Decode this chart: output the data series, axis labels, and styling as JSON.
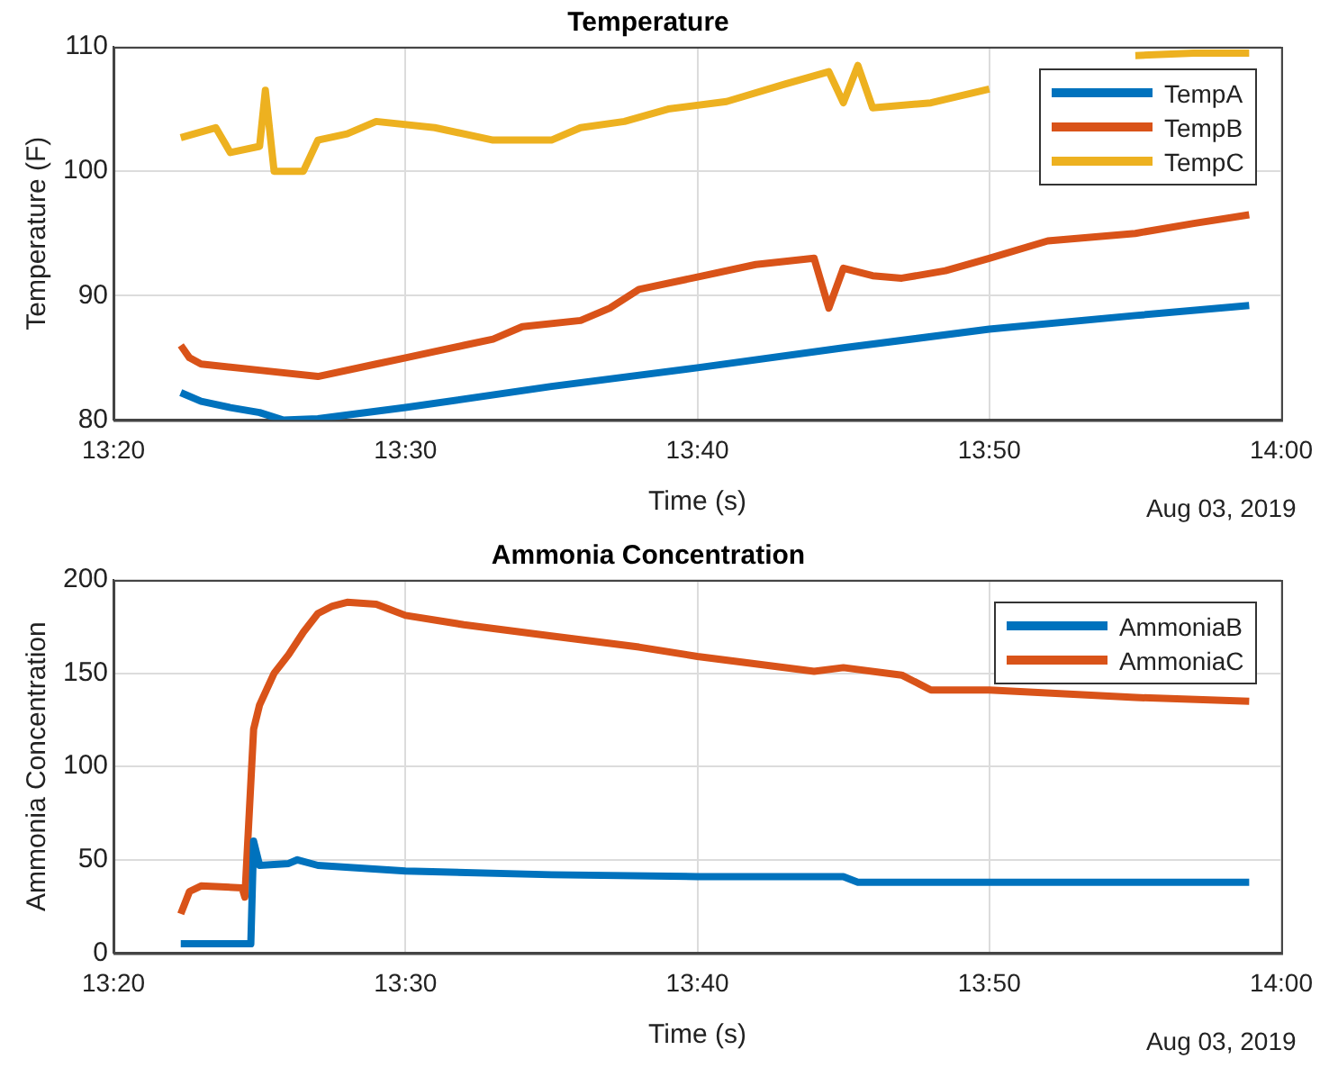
{
  "chart_data": [
    {
      "type": "line",
      "title": "Temperature",
      "xlabel": "Time (s)",
      "ylabel": "Temperature (F)",
      "annotations": [
        "Aug 03, 2019"
      ],
      "xlim": [
        13.3333,
        14
      ],
      "xticks": [
        {
          "value": 13.3333,
          "label": "13:20"
        },
        {
          "value": 13.5,
          "label": "13:30"
        },
        {
          "value": 13.6667,
          "label": "13:40"
        },
        {
          "value": 13.8333,
          "label": "13:50"
        },
        {
          "value": 14,
          "label": "14:00"
        }
      ],
      "ylim": [
        80,
        110
      ],
      "yticks": [
        80,
        90,
        100,
        110
      ],
      "grid": true,
      "legend": "top right",
      "marker": "none",
      "line_style": "solid",
      "series": [
        {
          "name": "TempA",
          "color": "#0072bd",
          "x": [
            13.3717,
            13.3833,
            13.4,
            13.4167,
            13.43,
            13.45,
            13.5,
            13.5833,
            13.6667,
            13.75,
            13.8333,
            13.9167,
            13.9817
          ],
          "values": [
            82.2,
            81.5,
            81.0,
            80.6,
            80.0,
            80.1,
            81.0,
            82.7,
            84.2,
            85.8,
            87.3,
            88.4,
            89.2
          ]
        },
        {
          "name": "TempB",
          "color": "#d95319",
          "x": [
            13.3717,
            13.3767,
            13.3833,
            13.4167,
            13.45,
            13.4833,
            13.5,
            13.5167,
            13.5333,
            13.55,
            13.5667,
            13.6,
            13.6167,
            13.6333,
            13.6667,
            13.7,
            13.7333,
            13.7417,
            13.75,
            13.7667,
            13.7833,
            13.8083,
            13.8333,
            13.8667,
            13.9167,
            13.95,
            13.9817
          ],
          "values": [
            86,
            85,
            84.5,
            84,
            83.5,
            84.5,
            85,
            85.5,
            86,
            86.5,
            87.5,
            88,
            89,
            90.5,
            91.5,
            92.5,
            93,
            89,
            92.2,
            91.6,
            91.4,
            92,
            93,
            94.4,
            95,
            95.8,
            96.5
          ]
        },
        {
          "name": "TempC",
          "color": "#edb120",
          "x": [
            13.3717,
            13.3917,
            13.4,
            13.4167,
            13.42,
            13.425,
            13.4417,
            13.45,
            13.4667,
            13.4833,
            13.5167,
            13.55,
            13.5833,
            13.6,
            13.625,
            13.65,
            13.6833,
            13.7167,
            13.7417,
            13.75,
            13.7583,
            13.7667,
            13.8,
            13.8333,
            13.8667,
            13.9167,
            13.95,
            13.9817
          ],
          "values": [
            102.7,
            103.5,
            101.5,
            102,
            106.5,
            100,
            100,
            102.5,
            103,
            104,
            103.5,
            102.5,
            102.5,
            103.5,
            104,
            105,
            105.6,
            107,
            108,
            105.5,
            108.5,
            105.1,
            105.5,
            106.6,
            null,
            109.3,
            109.5,
            109.5
          ]
        }
      ]
    },
    {
      "type": "line",
      "title": "Ammonia Concentration",
      "xlabel": "Time (s)",
      "ylabel": "Ammonia Concentration",
      "annotations": [
        "Aug 03, 2019"
      ],
      "xlim": [
        13.3333,
        14
      ],
      "xticks": [
        {
          "value": 13.3333,
          "label": "13:20"
        },
        {
          "value": 13.5,
          "label": "13:30"
        },
        {
          "value": 13.6667,
          "label": "13:40"
        },
        {
          "value": 13.8333,
          "label": "13:50"
        },
        {
          "value": 14,
          "label": "14:00"
        }
      ],
      "ylim": [
        0,
        200
      ],
      "yticks": [
        0,
        50,
        100,
        150,
        200
      ],
      "grid": true,
      "legend": "top right",
      "marker": "none",
      "line_style": "solid",
      "series": [
        {
          "name": "AmmoniaB",
          "color": "#0072bd",
          "x": [
            13.3717,
            13.4117,
            13.4133,
            13.4167,
            13.4333,
            13.4383,
            13.45,
            13.5,
            13.5833,
            13.6667,
            13.75,
            13.7583,
            13.8333,
            13.9817
          ],
          "values": [
            5,
            5,
            60,
            47,
            48,
            50,
            47,
            44,
            42,
            41,
            41,
            38,
            38,
            38
          ]
        },
        {
          "name": "AmmoniaC",
          "color": "#d95319",
          "x": [
            13.3717,
            13.3767,
            13.3833,
            13.4067,
            13.4083,
            13.4133,
            13.4167,
            13.425,
            13.4333,
            13.4417,
            13.45,
            13.4583,
            13.4667,
            13.4833,
            13.5,
            13.5333,
            13.5833,
            13.6333,
            13.6667,
            13.7333,
            13.75,
            13.7833,
            13.8,
            13.8333,
            13.9167,
            13.9817
          ],
          "values": [
            21,
            33,
            36,
            35,
            30,
            120,
            133,
            150,
            160,
            172,
            182,
            186,
            188,
            187,
            181,
            176,
            170,
            164,
            159,
            151,
            153,
            149,
            141,
            141,
            137,
            135
          ]
        }
      ]
    }
  ]
}
